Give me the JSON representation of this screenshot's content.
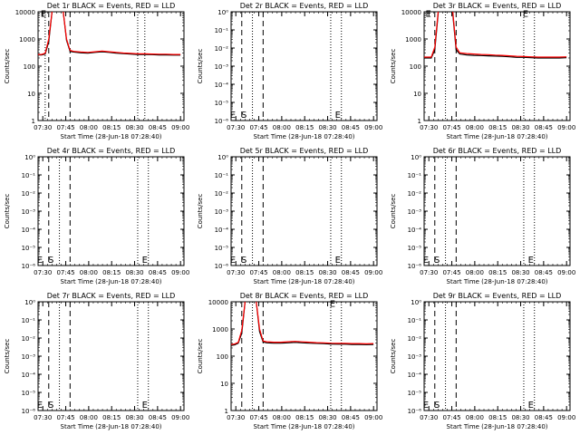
{
  "figure": {
    "x_axis_label": "Start Time (28-Jun-18 07:28:40)",
    "y_axis_label": "Counts/sec",
    "x_ticks": [
      "07:30",
      "07:45",
      "08:00",
      "08:15",
      "08:30",
      "08:45",
      "09:00"
    ],
    "colors": {
      "events": "#000000",
      "lld": "#ff0000",
      "axes": "#000000"
    }
  },
  "chart_data": [
    {
      "type": "line",
      "title": "Det 1r BLACK = Events, RED = LLD",
      "x_range_minutes": [
        0,
        41
      ],
      "yscale": "log",
      "y_range": [
        1,
        10000
      ],
      "y_ticks": [
        "1",
        "10",
        "100",
        "1000",
        "10000"
      ],
      "dashed_lines_min": [
        3,
        9
      ],
      "dotted_lines_min": [
        2,
        28,
        30
      ],
      "marker_labels": [
        {
          "text": "E",
          "x": 1.5,
          "y": 9000
        }
      ],
      "series": [
        {
          "name": "Events",
          "color": "#000000",
          "x": [
            0,
            1,
            2,
            3,
            4,
            5,
            7,
            8,
            9,
            10,
            12,
            14,
            16,
            18,
            20,
            22,
            24,
            26,
            28,
            30,
            32,
            34,
            36,
            38,
            40
          ],
          "y": [
            260,
            260,
            280,
            800,
            12000,
            12000,
            12000,
            900,
            350,
            330,
            310,
            300,
            320,
            340,
            320,
            300,
            290,
            280,
            270,
            270,
            265,
            260,
            260,
            255,
            255
          ]
        },
        {
          "name": "LLD",
          "color": "#ff0000",
          "x": [
            0,
            1,
            2,
            3,
            4,
            5,
            7,
            8,
            9,
            10,
            12,
            14,
            16,
            18,
            20,
            22,
            24,
            26,
            28,
            30,
            32,
            34,
            36,
            38,
            40
          ],
          "y": [
            270,
            270,
            300,
            1000,
            12000,
            12000,
            12000,
            1000,
            380,
            350,
            330,
            320,
            340,
            360,
            340,
            320,
            305,
            295,
            285,
            285,
            280,
            275,
            275,
            270,
            270
          ]
        }
      ]
    },
    {
      "type": "line",
      "title": "Det 2r BLACK = Events, RED = LLD",
      "x_range_minutes": [
        0,
        41
      ],
      "yscale": "log",
      "y_range": [
        1e-06,
        0.0001
      ],
      "y_ticks": [
        "10⁻⁶",
        "10⁻⁵",
        "10⁻⁴",
        "10⁻³",
        "10⁻²",
        "10⁻¹",
        "10⁰"
      ],
      "dashed_lines_min": [
        3,
        9
      ],
      "dotted_lines_min": [
        6,
        28,
        31
      ],
      "marker_labels": [
        {
          "text": "E",
          "x": 0.5,
          "y": 0
        },
        {
          "text": "S",
          "x": 3.6,
          "y": 0
        },
        {
          "text": "E",
          "x": 30,
          "y": 0
        }
      ],
      "series": []
    },
    {
      "type": "line",
      "title": "Det 3r BLACK = Events, RED = LLD",
      "x_range_minutes": [
        0,
        41
      ],
      "yscale": "log",
      "y_range": [
        1,
        10000
      ],
      "y_ticks": [
        "1",
        "10",
        "100",
        "1000",
        "10000"
      ],
      "dashed_lines_min": [
        3,
        9
      ],
      "dotted_lines_min": [
        6,
        28,
        31
      ],
      "marker_labels": [
        {
          "text": "E",
          "x": 1.2,
          "y": 9000
        },
        {
          "text": "E",
          "x": 28.5,
          "y": 9000
        }
      ],
      "series": [
        {
          "name": "Events",
          "color": "#000000",
          "x": [
            0,
            2,
            3,
            4,
            5,
            6,
            7,
            8,
            9,
            10,
            12,
            14,
            16,
            18,
            20,
            22,
            24,
            26,
            28,
            30,
            32,
            34,
            36,
            38,
            40
          ],
          "y": [
            200,
            200,
            400,
            10000,
            12000,
            12000,
            12000,
            10000,
            400,
            280,
            260,
            250,
            245,
            240,
            235,
            230,
            220,
            210,
            210,
            205,
            200,
            200,
            200,
            200,
            205
          ]
        },
        {
          "name": "LLD",
          "color": "#ff0000",
          "x": [
            0,
            2,
            3,
            4,
            5,
            6,
            7,
            8,
            9,
            10,
            12,
            14,
            16,
            18,
            20,
            22,
            24,
            26,
            28,
            30,
            32,
            34,
            36,
            38,
            40
          ],
          "y": [
            215,
            215,
            500,
            12000,
            12000,
            12000,
            12000,
            12000,
            500,
            310,
            290,
            280,
            270,
            265,
            255,
            250,
            240,
            230,
            225,
            220,
            215,
            215,
            215,
            215,
            220
          ]
        }
      ]
    },
    {
      "type": "line",
      "title": "Det 4r BLACK = Events, RED = LLD",
      "x_range_minutes": [
        0,
        41
      ],
      "yscale": "log",
      "y_range": [
        1e-06,
        0.0001
      ],
      "y_ticks": [
        "10⁻⁶",
        "10⁻⁵",
        "10⁻⁴",
        "10⁻³",
        "10⁻²",
        "10⁻¹",
        "10⁰"
      ],
      "dashed_lines_min": [
        3,
        9
      ],
      "dotted_lines_min": [
        6,
        28,
        31
      ],
      "marker_labels": [
        {
          "text": "E",
          "x": 0.5,
          "y": 0
        },
        {
          "text": "S",
          "x": 3.6,
          "y": 0
        },
        {
          "text": "E",
          "x": 30,
          "y": 0
        }
      ],
      "series": []
    },
    {
      "type": "line",
      "title": "Det 5r BLACK = Events, RED = LLD",
      "x_range_minutes": [
        0,
        41
      ],
      "yscale": "log",
      "y_range": [
        1e-06,
        0.0001
      ],
      "y_ticks": [
        "10⁻⁶",
        "10⁻⁵",
        "10⁻⁴",
        "10⁻³",
        "10⁻²",
        "10⁻¹",
        "10⁰"
      ],
      "dashed_lines_min": [
        3,
        9
      ],
      "dotted_lines_min": [
        6,
        28,
        31
      ],
      "marker_labels": [
        {
          "text": "E",
          "x": 0.5,
          "y": 0
        },
        {
          "text": "S",
          "x": 3.6,
          "y": 0
        },
        {
          "text": "E",
          "x": 30,
          "y": 0
        }
      ],
      "series": []
    },
    {
      "type": "line",
      "title": "Det 6r BLACK = Events, RED = LLD",
      "x_range_minutes": [
        0,
        41
      ],
      "yscale": "log",
      "y_range": [
        1e-06,
        0.0001
      ],
      "y_ticks": [
        "10⁻⁶",
        "10⁻⁵",
        "10⁻⁴",
        "10⁻³",
        "10⁻²",
        "10⁻¹",
        "10⁰"
      ],
      "dashed_lines_min": [
        3,
        9
      ],
      "dotted_lines_min": [
        6,
        28,
        31
      ],
      "marker_labels": [
        {
          "text": "E",
          "x": 0.5,
          "y": 0
        },
        {
          "text": "S",
          "x": 3.6,
          "y": 0
        },
        {
          "text": "E",
          "x": 30,
          "y": 0
        }
      ],
      "series": []
    },
    {
      "type": "line",
      "title": "Det 7r BLACK = Events, RED = LLD",
      "x_range_minutes": [
        0,
        41
      ],
      "yscale": "log",
      "y_range": [
        1e-06,
        0.0001
      ],
      "y_ticks": [
        "10⁻⁶",
        "10⁻⁵",
        "10⁻⁴",
        "10⁻³",
        "10⁻²",
        "10⁻¹",
        "10⁰"
      ],
      "dashed_lines_min": [
        3,
        9
      ],
      "dotted_lines_min": [
        6,
        28,
        31
      ],
      "marker_labels": [
        {
          "text": "E",
          "x": 0.5,
          "y": 0
        },
        {
          "text": "S",
          "x": 3.6,
          "y": 0
        },
        {
          "text": "E",
          "x": 30,
          "y": 0
        }
      ],
      "series": []
    },
    {
      "type": "line",
      "title": "Det 8r BLACK = Events, RED = LLD",
      "x_range_minutes": [
        0,
        41
      ],
      "yscale": "log",
      "y_range": [
        1,
        10000
      ],
      "y_ticks": [
        "1",
        "10",
        "100",
        "1000",
        "10000"
      ],
      "dashed_lines_min": [
        3,
        9
      ],
      "dotted_lines_min": [
        6,
        28,
        31
      ],
      "marker_labels": [
        {
          "text": "E",
          "x": 28.5,
          "y": 9000
        }
      ],
      "series": [
        {
          "name": "Events",
          "color": "#000000",
          "x": [
            0,
            1,
            2,
            3,
            4,
            5,
            7,
            8,
            9,
            10,
            12,
            14,
            16,
            18,
            20,
            22,
            24,
            26,
            28,
            30,
            32,
            34,
            36,
            38,
            40
          ],
          "y": [
            250,
            260,
            300,
            700,
            12000,
            12000,
            12000,
            800,
            330,
            310,
            300,
            300,
            310,
            320,
            310,
            300,
            295,
            290,
            280,
            275,
            275,
            270,
            270,
            265,
            270
          ]
        },
        {
          "name": "LLD",
          "color": "#ff0000",
          "x": [
            0,
            1,
            2,
            3,
            4,
            5,
            7,
            8,
            9,
            10,
            12,
            14,
            16,
            18,
            20,
            22,
            24,
            26,
            28,
            30,
            32,
            34,
            36,
            38,
            40
          ],
          "y": [
            270,
            280,
            320,
            900,
            12000,
            12000,
            12000,
            1000,
            360,
            340,
            325,
            325,
            340,
            350,
            335,
            325,
            315,
            310,
            300,
            295,
            295,
            290,
            290,
            285,
            290
          ]
        }
      ]
    },
    {
      "type": "line",
      "title": "Det 9r BLACK = Events, RED = LLD",
      "x_range_minutes": [
        0,
        41
      ],
      "yscale": "log",
      "y_range": [
        1e-06,
        0.0001
      ],
      "y_ticks": [
        "10⁻⁶",
        "10⁻⁵",
        "10⁻⁴",
        "10⁻³",
        "10⁻²",
        "10⁻¹",
        "10⁰"
      ],
      "dashed_lines_min": [
        3,
        9
      ],
      "dotted_lines_min": [
        6,
        28,
        31
      ],
      "marker_labels": [
        {
          "text": "E",
          "x": 0.5,
          "y": 0
        },
        {
          "text": "S",
          "x": 3.6,
          "y": 0
        },
        {
          "text": "E",
          "x": 30,
          "y": 0
        }
      ],
      "series": []
    }
  ]
}
